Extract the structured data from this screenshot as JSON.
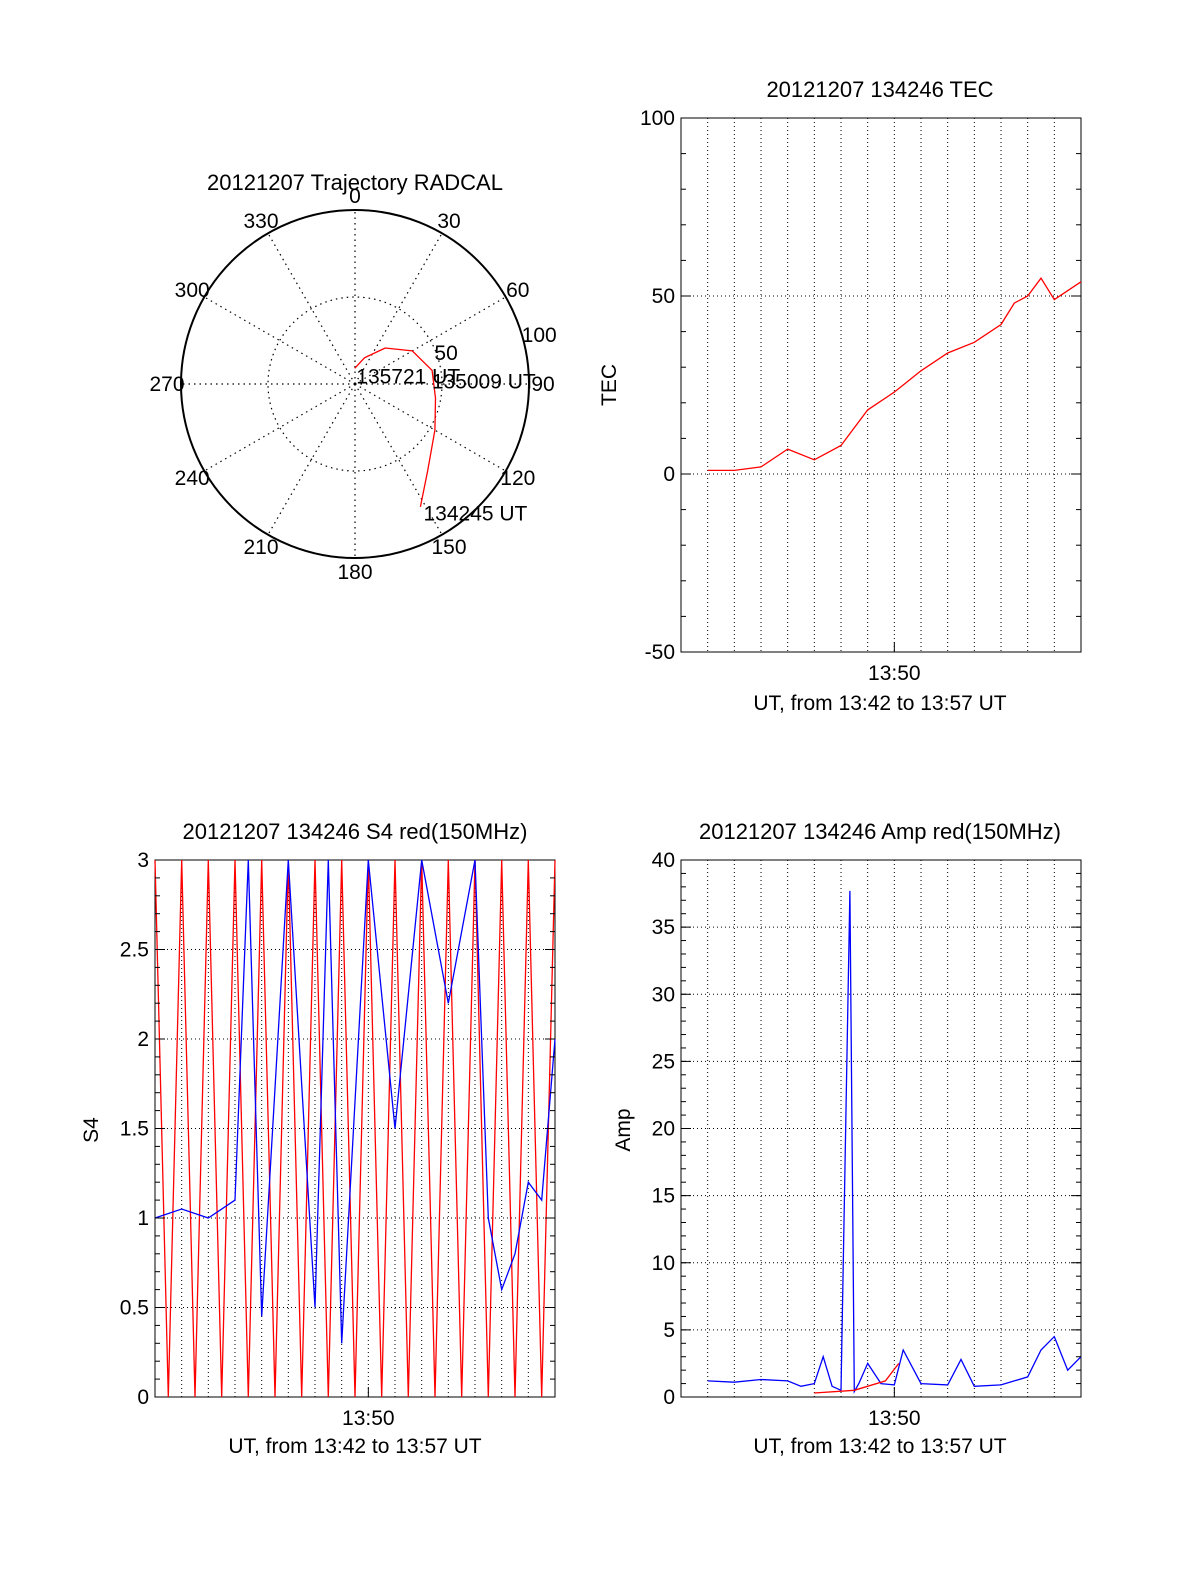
{
  "chart_data": [
    {
      "type": "polar",
      "title": "20121207 Trajectory RADCAL",
      "angle_labels": [
        "0",
        "30",
        "60",
        "90",
        "120",
        "150",
        "180",
        "210",
        "240",
        "270",
        "300",
        "330"
      ],
      "radial_ticks": [
        50,
        100
      ],
      "radial_tick_labels": [
        "50",
        "100"
      ],
      "rmax": 100,
      "grid": true,
      "trajectory": {
        "color": "#ff0000",
        "points": [
          {
            "az": 152.0,
            "el": 20
          },
          {
            "az": 140.0,
            "el": 35
          },
          {
            "az": 120.0,
            "el": 47
          },
          {
            "az": 100.0,
            "el": 53
          },
          {
            "az": 80.0,
            "el": 55
          },
          {
            "az": 60.0,
            "el": 62
          },
          {
            "az": 40.0,
            "el": 73
          },
          {
            "az": 20.0,
            "el": 84
          },
          {
            "az": -1.0,
            "el": 91
          }
        ],
        "annotations": [
          {
            "text": "135721 UT",
            "az": 1.0,
            "el": 91
          },
          {
            "text": "135009 UT",
            "az": 82.0,
            "el": 56
          },
          {
            "text": "134245 UT",
            "az": 151.0,
            "el": 20
          }
        ]
      }
    },
    {
      "type": "line",
      "title": "20121207 134246 TEC",
      "xlabel": "UT, from 13:42 to 13:57 UT",
      "ylabel": "TEC",
      "xlim": [
        "13:42",
        "13:57"
      ],
      "xtick_labels": [
        {
          "time": "13:50",
          "label": "13:50"
        }
      ],
      "ylim": [
        -50,
        100
      ],
      "yticks": [
        -50,
        0,
        50,
        100
      ],
      "grid": true,
      "series": [
        {
          "color": "#ff0000",
          "x": [
            "13:43:00",
            "13:44:00",
            "13:45:00",
            "13:46:00",
            "13:47:00",
            "13:48:00",
            "13:49:00",
            "13:50:00",
            "13:51:00",
            "13:52:00",
            "13:53:00",
            "13:54:00",
            "13:54:30",
            "13:55:00",
            "13:55:30",
            "13:56:00",
            "13:57:00"
          ],
          "values": [
            1,
            1,
            2,
            7,
            4,
            8,
            18,
            23,
            29,
            34,
            37,
            42,
            48,
            50,
            55,
            49,
            54
          ]
        }
      ]
    },
    {
      "type": "line",
      "title": "20121207 134246 S4 red(150MHz)",
      "xlabel": "UT, from 13:42 to 13:57 UT",
      "ylabel": "S4",
      "xlim": [
        "13:42",
        "13:57"
      ],
      "xtick_labels": [
        {
          "time": "13:50",
          "label": "13:50"
        }
      ],
      "ylim": [
        0,
        3
      ],
      "yticks": [
        0,
        0.5,
        1,
        1.5,
        2,
        2.5,
        3
      ],
      "ytick_labels": [
        "0",
        "0.5",
        "1",
        "1.5",
        "2",
        "2.5",
        "3"
      ],
      "grid": true,
      "series": [
        {
          "color": "#ff0000",
          "x": [
            "13:42:00",
            "13:42:30",
            "13:43:00",
            "13:43:30",
            "13:44:00",
            "13:44:30",
            "13:45:00",
            "13:45:30",
            "13:46:00",
            "13:46:30",
            "13:47:00",
            "13:47:30",
            "13:48:00",
            "13:48:30",
            "13:49:00",
            "13:49:30",
            "13:50:00",
            "13:50:30",
            "13:51:00",
            "13:51:30",
            "13:52:00",
            "13:52:30",
            "13:53:00",
            "13:53:30",
            "13:54:00",
            "13:54:30",
            "13:55:00",
            "13:55:30",
            "13:56:00",
            "13:56:30",
            "13:57:00"
          ],
          "values": [
            3,
            0,
            3,
            0,
            3,
            0,
            3,
            0,
            3,
            0,
            3,
            0,
            3,
            0,
            3,
            0,
            3,
            0,
            3,
            0,
            3,
            0,
            3,
            0,
            3,
            0,
            3,
            0,
            3,
            0,
            3
          ]
        },
        {
          "color": "#0000ff",
          "x": [
            "13:42:00",
            "13:43:00",
            "13:44:00",
            "13:45:00",
            "13:45:30",
            "13:46:00",
            "13:47:00",
            "13:48:00",
            "13:48:30",
            "13:49:00",
            "13:50:00",
            "13:51:00",
            "13:52:00",
            "13:53:00",
            "13:54:00",
            "13:54:30",
            "13:55:00",
            "13:55:30",
            "13:56:00",
            "13:56:30",
            "13:57:00"
          ],
          "values": [
            1.0,
            1.05,
            1.0,
            1.1,
            3,
            0.45,
            3,
            0.5,
            3,
            0.3,
            3,
            1.5,
            3,
            2.2,
            3,
            1.0,
            0.6,
            0.8,
            1.2,
            1.1,
            2.0
          ]
        }
      ]
    },
    {
      "type": "line",
      "title": "20121207 134246 Amp red(150MHz)",
      "xlabel": "UT, from 13:42 to 13:57 UT",
      "ylabel": "Amp",
      "xlim": [
        "13:42",
        "13:57"
      ],
      "xtick_labels": [
        {
          "time": "13:50",
          "label": "13:50"
        }
      ],
      "ylim": [
        0,
        40
      ],
      "yticks": [
        0,
        5,
        10,
        15,
        20,
        25,
        30,
        35,
        40
      ],
      "grid": true,
      "series": [
        {
          "color": "#0000ff",
          "x": [
            "13:43:00",
            "13:44:00",
            "13:45:00",
            "13:46:00",
            "13:46:30",
            "13:47:00",
            "13:47:20",
            "13:47:40",
            "13:48:00",
            "13:48:20",
            "13:48:30",
            "13:48:40",
            "13:49:00",
            "13:49:30",
            "13:50:00",
            "13:50:20",
            "13:51:00",
            "13:52:00",
            "13:52:30",
            "13:53:00",
            "13:54:00",
            "13:55:00",
            "13:55:30",
            "13:56:00",
            "13:56:30",
            "13:57:00"
          ],
          "values": [
            1.2,
            1.1,
            1.3,
            1.2,
            0.8,
            1.0,
            3.0,
            0.8,
            0.5,
            37.7,
            0.4,
            1.0,
            2.5,
            1.0,
            0.9,
            3.5,
            1.0,
            0.9,
            2.8,
            0.8,
            0.9,
            1.5,
            3.5,
            4.5,
            2.0,
            3.0
          ]
        },
        {
          "color": "#ff0000",
          "x": [
            "13:47:00",
            "13:48:30",
            "13:49:40",
            "13:50:10"
          ],
          "values": [
            0.3,
            0.5,
            1.2,
            2.5
          ]
        }
      ]
    }
  ]
}
